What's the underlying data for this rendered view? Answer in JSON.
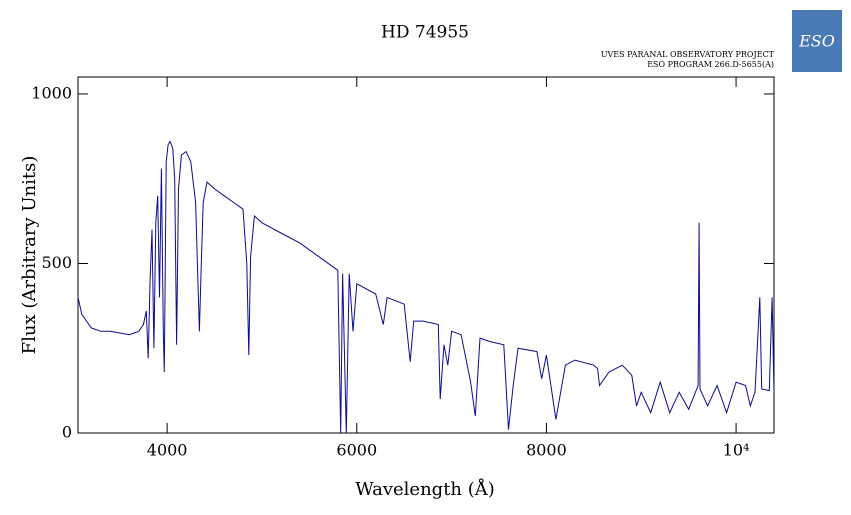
{
  "chart_data": {
    "type": "line",
    "title": "HD 74955",
    "notes": [
      "UVES PARANAL OBSERVATORY PROJECT",
      "ESO PROGRAM 266.D-5655(A)"
    ],
    "logo": "ESO",
    "xlabel": "Wavelength (Å)",
    "ylabel": "Flux (Arbitrary Units)",
    "xlim": [
      3060,
      10400
    ],
    "ylim": [
      0,
      1050
    ],
    "xticks": [
      4000,
      6000,
      8000,
      {
        "value": 10000,
        "label": "10⁴"
      }
    ],
    "yticks": [
      0,
      500,
      1000
    ],
    "x": [
      3060,
      3100,
      3150,
      3200,
      3300,
      3400,
      3500,
      3600,
      3700,
      3750,
      3780,
      3800,
      3820,
      3840,
      3860,
      3880,
      3900,
      3920,
      3940,
      3960,
      3970,
      3990,
      4010,
      4030,
      4060,
      4080,
      4100,
      4120,
      4150,
      4200,
      4250,
      4300,
      4340,
      4360,
      4380,
      4420,
      4500,
      4600,
      4700,
      4800,
      4840,
      4861,
      4880,
      4920,
      5000,
      5200,
      5400,
      5600,
      5800,
      5830,
      5850,
      5890,
      5920,
      5960,
      6000,
      6200,
      6280,
      6320,
      6500,
      6563,
      6600,
      6700,
      6860,
      6880,
      6920,
      6960,
      7000,
      7100,
      7200,
      7250,
      7300,
      7400,
      7550,
      7600,
      7650,
      7700,
      7900,
      7950,
      8000,
      8100,
      8200,
      8300,
      8500,
      8540,
      8560,
      8660,
      8800,
      8900,
      8950,
      9000,
      9100,
      9200,
      9300,
      9400,
      9500,
      9600,
      9610,
      9620,
      9700,
      9800,
      9900,
      10000,
      10100,
      10150,
      10200,
      10250,
      10270,
      10350,
      10380,
      10400
    ],
    "series": [
      {
        "name": "HD 74955",
        "color": "#0c0c8a",
        "values": [
          400,
          350,
          330,
          310,
          300,
          300,
          295,
          290,
          300,
          320,
          360,
          220,
          450,
          600,
          250,
          620,
          700,
          400,
          780,
          300,
          180,
          800,
          850,
          860,
          840,
          750,
          260,
          720,
          820,
          830,
          800,
          680,
          300,
          500,
          680,
          740,
          720,
          700,
          680,
          660,
          500,
          230,
          520,
          640,
          620,
          590,
          560,
          520,
          480,
          0,
          470,
          0,
          470,
          300,
          440,
          410,
          320,
          400,
          380,
          210,
          330,
          330,
          320,
          100,
          260,
          200,
          300,
          290,
          150,
          50,
          280,
          270,
          260,
          10,
          140,
          250,
          240,
          160,
          230,
          40,
          200,
          215,
          200,
          190,
          140,
          180,
          200,
          170,
          80,
          120,
          60,
          150,
          60,
          120,
          70,
          140,
          620,
          130,
          80,
          140,
          60,
          150,
          140,
          80,
          120,
          400,
          130,
          125,
          400,
          120
        ]
      }
    ]
  }
}
